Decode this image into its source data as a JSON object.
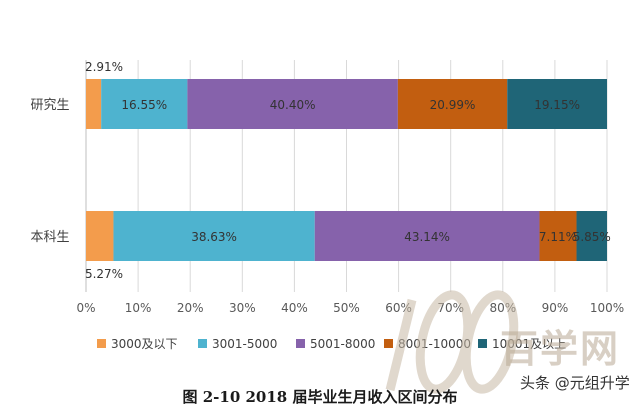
{
  "chart_data": {
    "type": "bar",
    "orientation": "horizontal",
    "stacked": true,
    "categories": [
      "研究生",
      "本科生"
    ],
    "series": [
      {
        "name": "3000及以下",
        "color": "#f39c4c",
        "values": [
          2.91,
          5.27
        ]
      },
      {
        "name": "3001-5000",
        "color": "#4eb3cf",
        "values": [
          16.55,
          38.63
        ]
      },
      {
        "name": "5001-8000",
        "color": "#8662ab",
        "values": [
          40.4,
          43.14
        ]
      },
      {
        "name": "8001-10000",
        "color": "#c25e10",
        "values": [
          20.99,
          7.11
        ]
      },
      {
        "name": "10001及以上",
        "color": "#1f6577",
        "values": [
          19.15,
          5.85
        ]
      }
    ],
    "data_labels": [
      [
        "2.91%",
        "16.55%",
        "40.40%",
        "20.99%",
        "19.15%"
      ],
      [
        "5.27%",
        "38.63%",
        "43.14%",
        "7.11%",
        "5.85%"
      ]
    ],
    "x_ticks": [
      "0%",
      "10%",
      "20%",
      "30%",
      "40%",
      "50%",
      "60%",
      "70%",
      "80%",
      "90%",
      "100%"
    ],
    "xlim": [
      0,
      100
    ],
    "grid": "vertical",
    "legend_position": "bottom",
    "title": "",
    "xlabel": "",
    "ylabel": ""
  },
  "caption": "图 2-10 2018 届毕业生月收入区间分布",
  "watermark": {
    "mark_text": "百学网",
    "credit": "头条 @元组升学"
  }
}
